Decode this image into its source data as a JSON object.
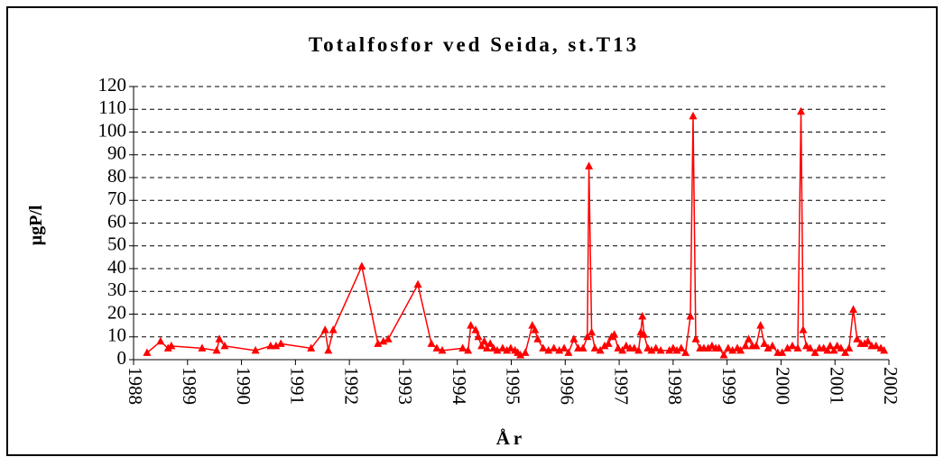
{
  "chart_data": {
    "type": "line",
    "title": "Totalfosfor ved Seida, st.T13",
    "x_label": "År",
    "y_label": "µgP/l",
    "xlim": [
      1988,
      2002
    ],
    "xticks": [
      1988,
      1989,
      1990,
      1991,
      1992,
      1993,
      1994,
      1995,
      1996,
      1997,
      1998,
      1999,
      2000,
      2001,
      2002
    ],
    "ylim": [
      0,
      120
    ],
    "yticks": [
      0,
      10,
      20,
      30,
      40,
      50,
      60,
      70,
      80,
      90,
      100,
      110,
      120
    ],
    "grid": true,
    "series": [
      {
        "name": "Totalfosfor",
        "color": "#ff0000",
        "x": [
          1988.25,
          1988.5,
          1988.64,
          1988.7,
          1989.27,
          1989.54,
          1989.59,
          1989.69,
          1990.26,
          1990.54,
          1990.64,
          1990.73,
          1991.29,
          1991.55,
          1991.61,
          1991.7,
          1992.23,
          1992.53,
          1992.63,
          1992.72,
          1993.27,
          1993.52,
          1993.62,
          1993.72,
          1994.1,
          1994.2,
          1994.25,
          1994.34,
          1994.39,
          1994.45,
          1994.5,
          1994.55,
          1994.61,
          1994.67,
          1994.74,
          1994.84,
          1994.92,
          1994.99,
          1995.07,
          1995.12,
          1995.17,
          1995.26,
          1995.39,
          1995.44,
          1995.49,
          1995.59,
          1995.69,
          1995.79,
          1995.89,
          1995.98,
          1996.06,
          1996.16,
          1996.24,
          1996.33,
          1996.41,
          1996.44,
          1996.49,
          1996.55,
          1996.65,
          1996.73,
          1996.8,
          1996.86,
          1996.91,
          1996.98,
          1997.06,
          1997.13,
          1997.2,
          1997.28,
          1997.36,
          1997.4,
          1997.43,
          1997.46,
          1997.53,
          1997.6,
          1997.68,
          1997.77,
          1997.93,
          1998.0,
          1998.07,
          1998.15,
          1998.23,
          1998.32,
          1998.37,
          1998.42,
          1998.5,
          1998.57,
          1998.65,
          1998.72,
          1998.79,
          1998.85,
          1998.94,
          1999.02,
          1999.1,
          1999.19,
          1999.25,
          1999.34,
          1999.4,
          1999.47,
          1999.54,
          1999.62,
          1999.69,
          1999.76,
          1999.84,
          1999.94,
          2000.02,
          2000.12,
          2000.21,
          2000.31,
          2000.37,
          2000.41,
          2000.47,
          2000.54,
          2000.63,
          2000.71,
          2000.79,
          2000.86,
          2000.91,
          2000.98,
          2001.04,
          2001.11,
          2001.19,
          2001.26,
          2001.34,
          2001.41,
          2001.48,
          2001.55,
          2001.61,
          2001.68,
          2001.76,
          2001.85,
          2001.91
        ],
        "values": [
          3,
          8,
          5,
          6,
          5,
          4,
          9,
          6,
          4,
          6,
          6,
          7,
          5,
          13,
          4,
          13,
          41,
          7,
          8,
          9,
          33,
          7,
          5,
          4,
          5,
          4,
          15,
          13,
          10,
          6,
          8,
          5,
          7,
          5,
          4,
          5,
          4,
          5,
          4,
          3,
          2,
          3,
          15,
          13,
          9,
          5,
          4,
          5,
          4,
          5,
          3,
          9,
          5,
          5,
          10,
          85,
          12,
          5,
          4,
          6,
          7,
          10,
          11,
          5,
          4,
          6,
          5,
          5,
          4,
          12,
          19,
          11,
          5,
          4,
          5,
          4,
          4,
          5,
          4,
          5,
          3,
          19,
          107,
          9,
          5,
          5,
          5,
          6,
          5,
          5,
          2,
          5,
          4,
          5,
          4,
          6,
          9,
          6,
          6,
          15,
          7,
          5,
          6,
          3,
          3,
          5,
          6,
          5,
          109,
          13,
          6,
          5,
          3,
          5,
          5,
          4,
          6,
          4,
          6,
          5,
          3,
          5,
          22,
          9,
          7,
          7,
          8,
          6,
          6,
          5,
          4
        ]
      }
    ]
  }
}
